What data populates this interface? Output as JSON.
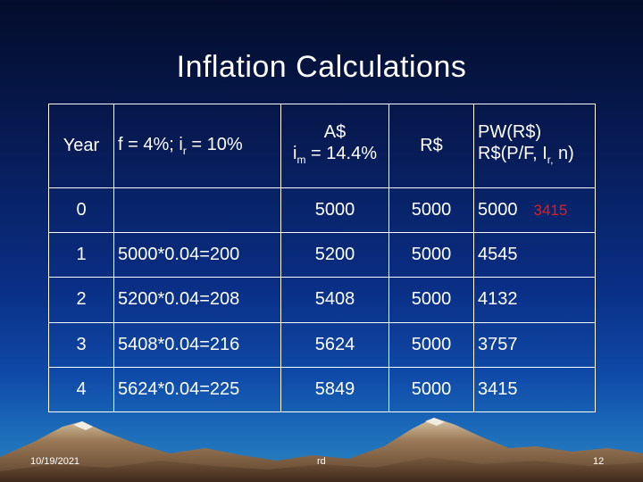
{
  "slide": {
    "title": "Inflation Calculations",
    "footer": {
      "date": "10/19/2021",
      "center": "rd",
      "page": "12"
    }
  },
  "table": {
    "header": {
      "year": "Year",
      "f_prefix": "f = 4%; i",
      "f_sub": "r",
      "f_suffix": " = 10%",
      "a_line1": "A$",
      "a_i": "i",
      "a_sub": "m",
      "a_suffix": " = 14.4%",
      "r": "R$",
      "pw_line1": "PW(R$)",
      "pw_line2_prefix": "R$(P/F, I",
      "pw_line2_sub": "r,",
      "pw_line2_suffix": " n)"
    },
    "rows": [
      {
        "year": "0",
        "calc": "",
        "a": "5000",
        "r": "5000",
        "pw": "5000",
        "pw_extra": "3415"
      },
      {
        "year": "1",
        "calc": "5000*0.04=200",
        "a": "5200",
        "r": "5000",
        "pw": "4545",
        "pw_extra": ""
      },
      {
        "year": "2",
        "calc": "5200*0.04=208",
        "a": "5408",
        "r": "5000",
        "pw": "4132",
        "pw_extra": ""
      },
      {
        "year": "3",
        "calc": "5408*0.04=216",
        "a": "5624",
        "r": "5000",
        "pw": "3757",
        "pw_extra": ""
      },
      {
        "year": "4",
        "calc": "5624*0.04=225",
        "a": "5849",
        "r": "5000",
        "pw": "3415",
        "pw_extra": ""
      }
    ]
  },
  "colors": {
    "highlight": "#e02020"
  }
}
